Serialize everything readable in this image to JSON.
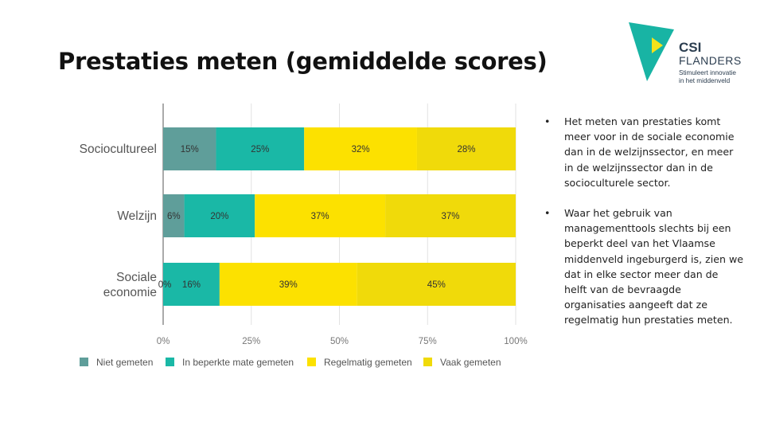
{
  "slide": {
    "title": "Prestaties meten (gemiddelde scores)"
  },
  "logo": {
    "name": "CSI",
    "line2": "FLANDERS",
    "tagline1": "Stimuleert innovatie",
    "tagline2": "in het middenveld",
    "colors": {
      "teal": "#18B4A4",
      "yellow": "#F5E21A",
      "text": "#2c3e50"
    }
  },
  "bullets": [
    "Het meten van prestaties komt meer voor in de sociale economie dan in de welzijnssector, en meer in de welzijnssector dan in de socioculturele sector.",
    "Waar het gebruik van managementtools slechts bij een beperkt deel van het Vlaamse middenveld ingeburgerd is, zien we dat in elke sector meer dan de helft van de bevraagde organisaties aangeeft dat ze regelmatig hun prestaties meten."
  ],
  "bullet_symbol": "•",
  "chart_data": {
    "type": "bar",
    "orientation": "horizontal",
    "stacked": true,
    "categories": [
      "Sociocultureel",
      "Welzijn",
      "Sociale economie"
    ],
    "series": [
      {
        "name": "Niet gemeten",
        "color": "#5F9E9A",
        "values": [
          15,
          6,
          0
        ]
      },
      {
        "name": "In beperkte mate gemeten",
        "color": "#1AB8A6",
        "values": [
          25,
          20,
          16
        ]
      },
      {
        "name": "Regelmatig gemeten",
        "color": "#FCE100",
        "values": [
          32,
          37,
          39
        ]
      },
      {
        "name": "Vaak gemeten",
        "color": "#F0DA0A",
        "values": [
          28,
          37,
          45
        ]
      }
    ],
    "data_labels": [
      [
        "15%",
        "25%",
        "32%",
        "28%"
      ],
      [
        "6%",
        "20%",
        "37%",
        "37%"
      ],
      [
        "0%",
        "16%",
        "39%",
        "45%"
      ]
    ],
    "xlim": [
      0,
      100
    ],
    "x_ticks": [
      "0%",
      "25%",
      "50%",
      "75%",
      "100%"
    ],
    "grid": true,
    "legend_position": "bottom"
  }
}
